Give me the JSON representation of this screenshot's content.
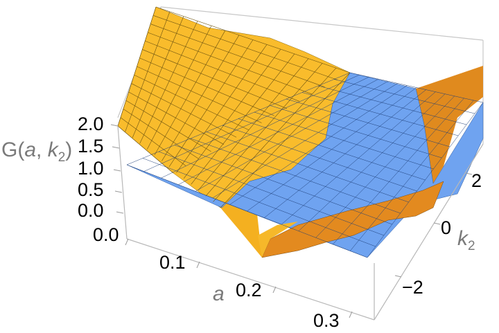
{
  "chart_data": {
    "type": "surface3d",
    "x_axis": {
      "name": "a",
      "ticks": [
        0.0,
        0.1,
        0.2,
        0.3
      ],
      "tick_labels": [
        "0.0",
        "0.1",
        "0.2",
        "0.3"
      ],
      "range": [
        0,
        0.35
      ]
    },
    "y_axis": {
      "name": "k",
      "subscript": "2",
      "ticks": [
        -2,
        0,
        2
      ],
      "tick_labels": [
        "−2",
        "0",
        "2"
      ],
      "range": [
        -3.5,
        3.5
      ]
    },
    "z_axis": {
      "label_main": "G(",
      "label_a": "a",
      "label_sep": ", ",
      "label_k": "k",
      "label_sub": "2",
      "label_close": ")",
      "ticks": [
        0.0,
        0.5,
        1.0,
        1.5,
        2.0
      ],
      "tick_labels": [
        "0.0",
        "0.5",
        "1.0",
        "1.5",
        "2.0"
      ],
      "range": [
        0,
        2.0
      ]
    },
    "surfaces": [
      {
        "kind": "function",
        "color": "#F9BC2C",
        "shade_color": "#D98A1B"
      },
      {
        "kind": "plane",
        "z": 1.0,
        "color": "#6FA3F0"
      }
    ],
    "grid_mesh": true
  }
}
